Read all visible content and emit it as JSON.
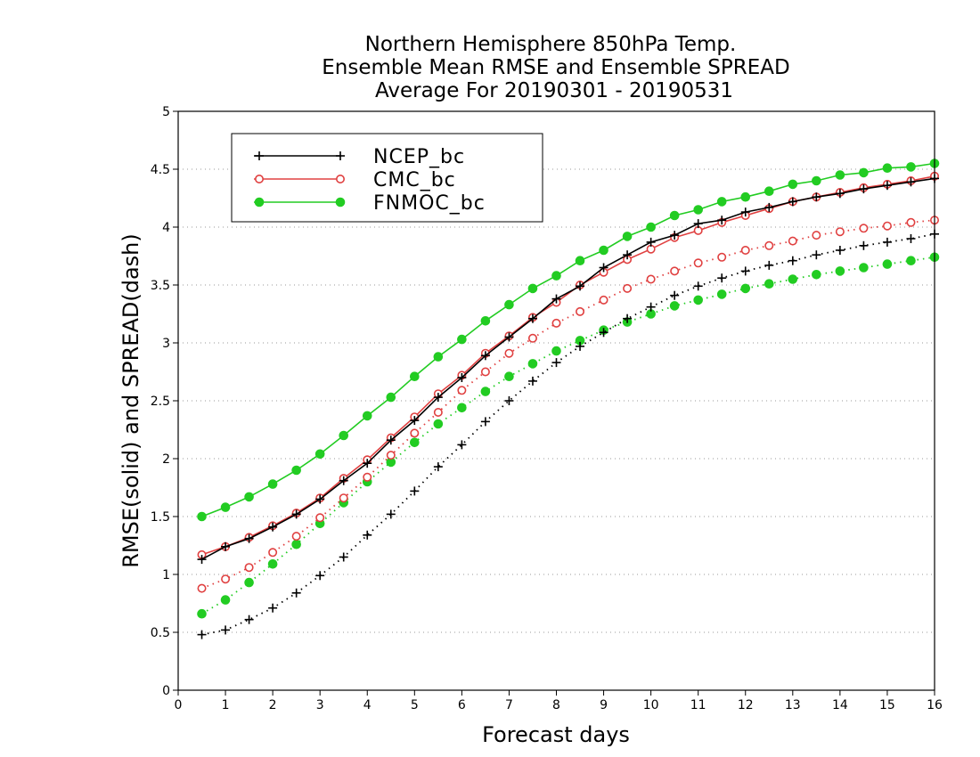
{
  "chart_data": {
    "type": "line",
    "title": [
      "Northern Hemisphere 850hPa Temp.",
      "Ensemble Mean RMSE and Ensemble SPREAD",
      "Average For 20190301 - 20190531"
    ],
    "xlabel": "Forecast days",
    "ylabel": "RMSE(solid) and SPREAD(dash)",
    "xlim": [
      0,
      16
    ],
    "ylim": [
      0,
      5
    ],
    "x_ticks": [
      "0",
      "1",
      "2",
      "3",
      "4",
      "5",
      "6",
      "7",
      "8",
      "9",
      "10",
      "11",
      "12",
      "13",
      "14",
      "15",
      "16"
    ],
    "y_ticks": [
      "0",
      "0.5",
      "1",
      "1.5",
      "2",
      "2.5",
      "3",
      "3.5",
      "4",
      "4.5",
      "5"
    ],
    "grid": "horizontal dotted",
    "legend_position": "top-left",
    "x": [
      0.5,
      1,
      1.5,
      2,
      2.5,
      3,
      3.5,
      4,
      4.5,
      5,
      5.5,
      6,
      6.5,
      7,
      7.5,
      8,
      8.5,
      9,
      9.5,
      10,
      10.5,
      11,
      11.5,
      12,
      12.5,
      13,
      13.5,
      14,
      14.5,
      15,
      15.5,
      16
    ],
    "series": [
      {
        "name": "NCEP_bc",
        "color": "#000000",
        "marker": "plus",
        "rmse": [
          1.13,
          1.24,
          1.31,
          1.41,
          1.52,
          1.65,
          1.81,
          1.96,
          2.16,
          2.33,
          2.53,
          2.7,
          2.89,
          3.05,
          3.21,
          3.38,
          3.49,
          3.65,
          3.76,
          3.87,
          3.93,
          4.03,
          4.06,
          4.13,
          4.17,
          4.22,
          4.26,
          4.29,
          4.33,
          4.36,
          4.39,
          4.42
        ],
        "spread": [
          0.48,
          0.52,
          0.61,
          0.71,
          0.84,
          0.99,
          1.15,
          1.34,
          1.52,
          1.72,
          1.93,
          2.12,
          2.32,
          2.5,
          2.67,
          2.83,
          2.97,
          3.09,
          3.21,
          3.31,
          3.41,
          3.49,
          3.56,
          3.62,
          3.67,
          3.71,
          3.76,
          3.8,
          3.84,
          3.87,
          3.9,
          3.94
        ]
      },
      {
        "name": "CMC_bc",
        "color": "#e04040",
        "marker": "open-circle",
        "rmse": [
          1.17,
          1.24,
          1.32,
          1.42,
          1.53,
          1.66,
          1.83,
          1.99,
          2.18,
          2.36,
          2.56,
          2.72,
          2.91,
          3.06,
          3.22,
          3.35,
          3.5,
          3.61,
          3.72,
          3.81,
          3.91,
          3.97,
          4.04,
          4.1,
          4.16,
          4.22,
          4.26,
          4.3,
          4.34,
          4.37,
          4.4,
          4.44
        ],
        "spread": [
          0.88,
          0.96,
          1.06,
          1.19,
          1.33,
          1.49,
          1.66,
          1.84,
          2.03,
          2.22,
          2.4,
          2.59,
          2.75,
          2.91,
          3.04,
          3.17,
          3.27,
          3.37,
          3.47,
          3.55,
          3.62,
          3.69,
          3.74,
          3.8,
          3.84,
          3.88,
          3.93,
          3.96,
          3.99,
          4.01,
          4.04,
          4.06
        ]
      },
      {
        "name": "FNMOC_bc",
        "color": "#22cc22",
        "marker": "filled-circle",
        "rmse": [
          1.5,
          1.58,
          1.67,
          1.78,
          1.9,
          2.04,
          2.2,
          2.37,
          2.53,
          2.71,
          2.88,
          3.03,
          3.19,
          3.33,
          3.47,
          3.58,
          3.71,
          3.8,
          3.92,
          4.0,
          4.1,
          4.15,
          4.22,
          4.26,
          4.31,
          4.37,
          4.4,
          4.45,
          4.47,
          4.51,
          4.52,
          4.55
        ],
        "spread": [
          0.66,
          0.78,
          0.93,
          1.09,
          1.26,
          1.44,
          1.62,
          1.8,
          1.97,
          2.14,
          2.3,
          2.44,
          2.58,
          2.71,
          2.82,
          2.93,
          3.02,
          3.11,
          3.18,
          3.25,
          3.32,
          3.37,
          3.42,
          3.47,
          3.51,
          3.55,
          3.59,
          3.62,
          3.65,
          3.68,
          3.71,
          3.74
        ]
      }
    ]
  }
}
